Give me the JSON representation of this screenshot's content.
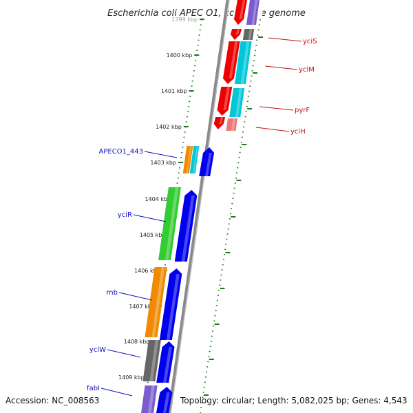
{
  "title": "Escherichia coli APEC O1, complete genome",
  "accession": "Accession: NC_008563",
  "topology": "Topology: circular; Length: 5,082,025 bp; Genes: 4,543",
  "colors": {
    "backbone": "#8a8a8a",
    "tick": "#1a7a1a",
    "left_label": "#1010c0",
    "right_label": "#c01010",
    "forward_gene": "#0000ee",
    "red_gene": "#ee0000",
    "cyan_gene": "#00c8d8",
    "green_gene": "#33cc33",
    "orange_gene": "#f08a00",
    "gray_gene": "#666666",
    "purple_gene": "#7a5ccc",
    "pink_gene": "#ee7777"
  },
  "ticks": [
    "1399 kbp",
    "1400 kbp",
    "1401 kbp",
    "1402 kbp",
    "1403 kbp",
    "1404 kbp",
    "1405 kbp",
    "1406 kbp",
    "1407 kbp",
    "1408 kbp",
    "1409 kbp"
  ],
  "genes": {
    "left": [
      {
        "name": "APECO1_443",
        "color_key": "orange_gene"
      },
      {
        "name": "yciR",
        "color_key": "green_gene"
      },
      {
        "name": "rnb",
        "color_key": "orange_gene"
      },
      {
        "name": "yciW",
        "color_key": "gray_gene"
      },
      {
        "name": "fabI",
        "color_key": "purple_gene"
      }
    ],
    "right": [
      {
        "name": "yciS",
        "color_key": "gray_gene"
      },
      {
        "name": "yciM",
        "color_key": "cyan_gene"
      },
      {
        "name": "pyrF",
        "color_key": "cyan_gene"
      },
      {
        "name": "yciH",
        "color_key": "pink_gene"
      }
    ]
  }
}
